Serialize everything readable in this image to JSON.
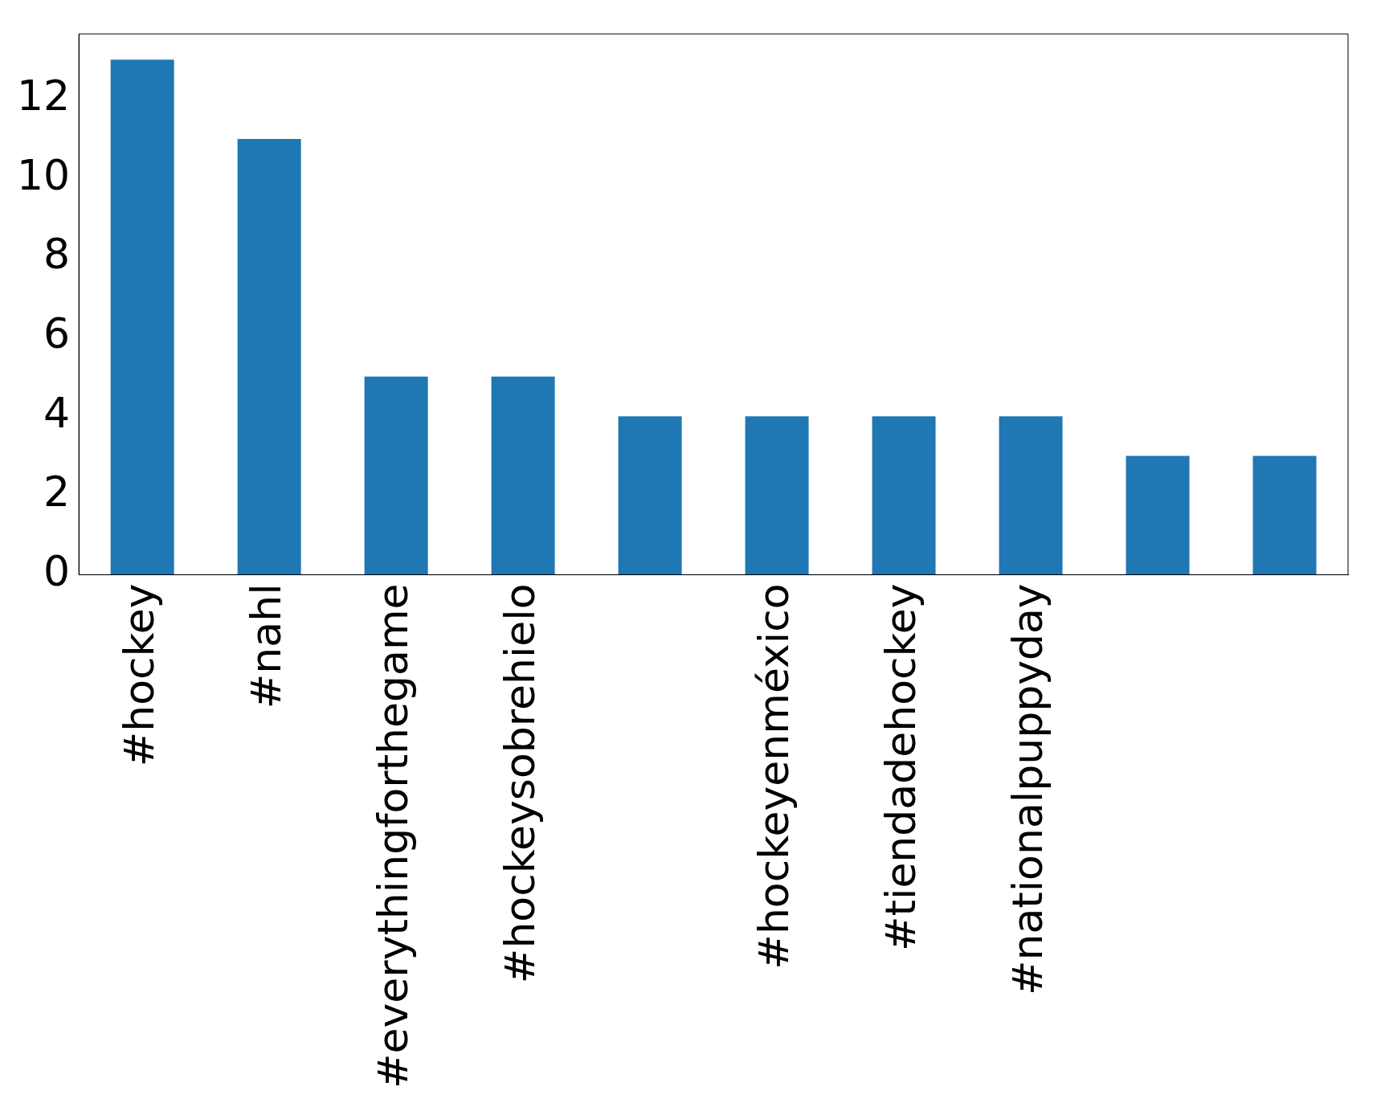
{
  "chart_data": {
    "type": "bar",
    "categories": [
      "#hockey",
      "#nahl",
      "#everythingforthegame",
      "#hockeysobrehielo",
      null,
      "#hockeyenméxico",
      "#tiendadehockey",
      "#nationalpuppyday",
      null,
      null
    ],
    "values": [
      13,
      11,
      5,
      5,
      4,
      4,
      4,
      4,
      3,
      3
    ],
    "color": "#1f77b4",
    "ylim": [
      0,
      13.65
    ],
    "yticks": [
      0,
      2,
      4,
      6,
      8,
      10,
      12
    ],
    "grid": false,
    "legend": false
  }
}
